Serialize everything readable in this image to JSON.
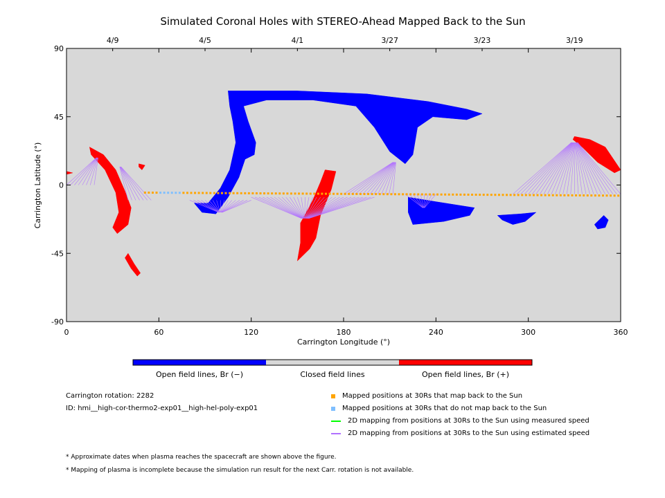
{
  "chart_data": {
    "type": "scatter",
    "title": "Simulated Coronal Holes with STEREO-Ahead Mapped Back to the Sun",
    "xlabel": "Carrington Longitude (°)",
    "ylabel": "Carrington Latitude (°)",
    "xlim": [
      0,
      360
    ],
    "ylim": [
      -90,
      90
    ],
    "x_ticks": [
      "0",
      "60",
      "120",
      "180",
      "240",
      "300",
      "360"
    ],
    "y_ticks": [
      "90",
      "45",
      "0",
      "-45",
      "-90"
    ],
    "top_ticks": [
      {
        "label": "4/9",
        "lon": 30
      },
      {
        "label": "4/5",
        "lon": 90
      },
      {
        "label": "4/1",
        "lon": 150
      },
      {
        "label": "3/27",
        "lon": 210
      },
      {
        "label": "3/23",
        "lon": 270
      },
      {
        "label": "3/19",
        "lon": 330
      }
    ],
    "background_color": "#d8d8d8",
    "colorbar": [
      {
        "label": "Open field lines, Br (−)",
        "color": "#0000ff"
      },
      {
        "label": "Closed field lines",
        "color": "#d8d8d8"
      },
      {
        "label": "Open field lines, Br (+)",
        "color": "#ff0000"
      }
    ],
    "coronal_holes": [
      {
        "polarity": "negative",
        "color": "#0000ff",
        "outline": [
          [
            105,
            62
          ],
          [
            150,
            62
          ],
          [
            195,
            60
          ],
          [
            235,
            55
          ],
          [
            260,
            50
          ],
          [
            270,
            47
          ],
          [
            260,
            43
          ],
          [
            238,
            45
          ],
          [
            228,
            38
          ],
          [
            225,
            20
          ],
          [
            220,
            14
          ],
          [
            210,
            22
          ],
          [
            200,
            38
          ],
          [
            188,
            52
          ],
          [
            160,
            56
          ],
          [
            130,
            56
          ],
          [
            115,
            52
          ],
          [
            118,
            42
          ],
          [
            123,
            28
          ],
          [
            122,
            20
          ],
          [
            116,
            17
          ],
          [
            112,
            5
          ],
          [
            105,
            -8
          ],
          [
            97,
            -19
          ],
          [
            88,
            -18
          ],
          [
            83,
            -12
          ],
          [
            92,
            -12
          ],
          [
            100,
            -2
          ],
          [
            106,
            10
          ],
          [
            110,
            28
          ],
          [
            108,
            42
          ],
          [
            106,
            52
          ]
        ]
      },
      {
        "polarity": "negative",
        "color": "#0000ff",
        "outline": [
          [
            222,
            -8
          ],
          [
            240,
            -11
          ],
          [
            265,
            -15
          ],
          [
            262,
            -20
          ],
          [
            245,
            -24
          ],
          [
            225,
            -26
          ],
          [
            222,
            -18
          ]
        ]
      },
      {
        "polarity": "negative",
        "color": "#0000ff",
        "outline": [
          [
            280,
            -20
          ],
          [
            295,
            -19
          ],
          [
            305,
            -18
          ],
          [
            298,
            -24
          ],
          [
            290,
            -26
          ],
          [
            283,
            -23
          ]
        ]
      },
      {
        "polarity": "negative",
        "color": "#0000ff",
        "outline": [
          [
            343,
            -26
          ],
          [
            349,
            -20
          ],
          [
            352,
            -23
          ],
          [
            350,
            -28
          ],
          [
            345,
            -29
          ]
        ]
      },
      {
        "polarity": "positive",
        "color": "#ff0000",
        "outline": [
          [
            15,
            25
          ],
          [
            24,
            20
          ],
          [
            32,
            10
          ],
          [
            38,
            -4
          ],
          [
            42,
            -15
          ],
          [
            40,
            -26
          ],
          [
            33,
            -32
          ],
          [
            30,
            -28
          ],
          [
            34,
            -18
          ],
          [
            32,
            -5
          ],
          [
            25,
            10
          ],
          [
            16,
            20
          ]
        ]
      },
      {
        "polarity": "positive",
        "color": "#ff0000",
        "outline": [
          [
            40,
            -45
          ],
          [
            44,
            -52
          ],
          [
            48,
            -58
          ],
          [
            46,
            -60
          ],
          [
            42,
            -55
          ],
          [
            38,
            -48
          ]
        ]
      },
      {
        "polarity": "positive",
        "color": "#ff0000",
        "outline": [
          [
            168,
            10
          ],
          [
            175,
            9
          ],
          [
            172,
            -3
          ],
          [
            165,
            -20
          ],
          [
            162,
            -35
          ],
          [
            158,
            -42
          ],
          [
            150,
            -50
          ],
          [
            152,
            -38
          ],
          [
            152,
            -25
          ],
          [
            160,
            -10
          ],
          [
            165,
            2
          ]
        ]
      },
      {
        "polarity": "positive",
        "color": "#ff0000",
        "outline": [
          [
            47,
            14
          ],
          [
            51,
            13
          ],
          [
            49,
            10
          ],
          [
            47,
            12
          ]
        ]
      },
      {
        "polarity": "positive",
        "color": "#ff0000",
        "outline": [
          [
            0,
            9
          ],
          [
            4,
            8
          ],
          [
            0,
            7
          ]
        ]
      },
      {
        "polarity": "positive",
        "color": "#ff0000",
        "outline": [
          [
            330,
            32
          ],
          [
            340,
            30
          ],
          [
            350,
            25
          ],
          [
            360,
            10
          ],
          [
            356,
            8
          ],
          [
            345,
            15
          ],
          [
            335,
            25
          ],
          [
            329,
            30
          ]
        ]
      }
    ],
    "mapped_points": {
      "color_mapped": "#ffa500",
      "color_unmapped": "#7fbfff",
      "lon_start": 51,
      "lat_start": -5,
      "lon_end": 360,
      "lat_end": -7,
      "step": 2.5,
      "unmapped_lon_range": [
        60,
        75
      ]
    },
    "mapping_lines_estimated": {
      "color": "#b070ff",
      "fans": [
        {
          "from_lon": [
            0,
            18
          ],
          "from_lat": 0,
          "to_lon": 20,
          "to_lat": 18
        },
        {
          "from_lon": [
            40,
            55
          ],
          "from_lat": -10,
          "to_lon": 35,
          "to_lat": 12
        },
        {
          "from_lon": [
            80,
            120
          ],
          "from_lat": -10,
          "to_lon": 100,
          "to_lat": -18
        },
        {
          "from_lon": [
            120,
            200
          ],
          "from_lat": -8,
          "to_lon": 155,
          "to_lat": -22
        },
        {
          "from_lon": [
            180,
            212
          ],
          "from_lat": -6,
          "to_lon": 213,
          "to_lat": 15
        },
        {
          "from_lon": [
            220,
            240
          ],
          "from_lat": -6,
          "to_lon": 232,
          "to_lat": -15
        },
        {
          "from_lon": [
            290,
            360
          ],
          "from_lat": -6,
          "to_lon": 330,
          "to_lat": 28
        }
      ]
    },
    "mapping_lines_measured": {
      "color": "#00ff00",
      "fans": []
    }
  },
  "info": {
    "rotation": "Carrington rotation: 2282",
    "id": "ID: hmi__high-cor-thermo2-exp01__high-hel-poly-exp01"
  },
  "legend": [
    {
      "label": "Mapped positions at 30Rs that map back to the Sun",
      "color": "#ffa500",
      "kind": "square"
    },
    {
      "label": "Mapped positions at 30Rs that do not map back to the Sun",
      "color": "#7fbfff",
      "kind": "square"
    },
    {
      "label": "2D mapping from positions at 30Rs to the Sun using measured speed",
      "color": "#00ff00",
      "kind": "line"
    },
    {
      "label": "2D mapping from positions at 30Rs to the Sun using estimated speed",
      "color": "#b070ff",
      "kind": "line"
    }
  ],
  "notes": [
    "* Approximate dates when plasma reaches the spacecraft are shown above the figure.",
    "* Mapping of plasma is incomplete because the simulation run result for the next Carr. rotation is not available."
  ]
}
